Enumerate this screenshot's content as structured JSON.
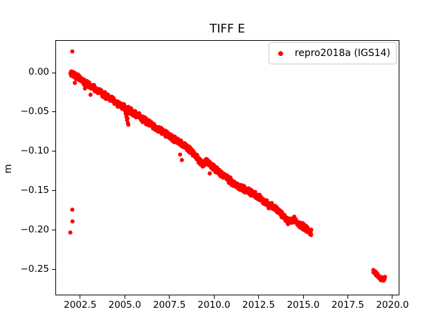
{
  "chart_data": {
    "type": "scatter",
    "title": "TIFF E",
    "xlabel": "",
    "ylabel": "m",
    "grid": false,
    "xlim": [
      2001.15,
      2020.35
    ],
    "ylim": [
      -0.282,
      0.0405
    ],
    "x_ticks": {
      "values": [
        2002.5,
        2005.0,
        2007.5,
        2010.0,
        2012.5,
        2015.0,
        2017.5,
        2020.0
      ],
      "labels": [
        "2002.5",
        "2005.0",
        "2007.5",
        "2010.0",
        "2012.5",
        "2015.0",
        "2017.5",
        "2020.0"
      ]
    },
    "y_ticks": {
      "values": [
        0.0,
        -0.05,
        -0.1,
        -0.15,
        -0.2,
        -0.25
      ],
      "labels": [
        "0.00",
        "−0.05",
        "−0.10",
        "−0.15",
        "−0.20",
        "−0.25"
      ]
    },
    "legend": {
      "position": "upper right",
      "entries": [
        {
          "label": "repro2018a (IGS14)",
          "color": "#ff0000",
          "marker": "dot"
        }
      ]
    },
    "series": [
      {
        "name": "repro2018a (IGS14)",
        "color": "#ff0000",
        "marker_radius_px": 3,
        "segments": [
          {
            "kind": "dense-trend",
            "points_per_year": 105,
            "noise": 0.0035,
            "anchors": [
              [
                2001.95,
                0.0
              ],
              [
                2002.35,
                -0.005
              ],
              [
                2002.75,
                -0.012
              ],
              [
                2003.25,
                -0.019
              ],
              [
                2003.75,
                -0.027
              ],
              [
                2004.25,
                -0.034
              ],
              [
                2004.75,
                -0.041
              ],
              [
                2005.25,
                -0.048
              ],
              [
                2005.75,
                -0.055
              ],
              [
                2006.25,
                -0.062
              ],
              [
                2006.75,
                -0.07
              ],
              [
                2007.25,
                -0.077
              ],
              [
                2007.75,
                -0.084
              ],
              [
                2008.25,
                -0.091
              ],
              [
                2008.75,
                -0.1
              ],
              [
                2009.1,
                -0.109
              ],
              [
                2009.35,
                -0.117
              ],
              [
                2009.6,
                -0.112
              ],
              [
                2010.0,
                -0.121
              ],
              [
                2010.5,
                -0.13
              ],
              [
                2011.0,
                -0.139
              ],
              [
                2011.5,
                -0.146
              ],
              [
                2012.0,
                -0.151
              ],
              [
                2012.5,
                -0.158
              ],
              [
                2013.0,
                -0.167
              ],
              [
                2013.5,
                -0.173
              ],
              [
                2013.9,
                -0.183
              ],
              [
                2014.2,
                -0.189
              ],
              [
                2014.5,
                -0.187
              ],
              [
                2014.9,
                -0.194
              ],
              [
                2015.2,
                -0.199
              ],
              [
                2015.45,
                -0.203
              ]
            ]
          },
          {
            "kind": "dense-cluster",
            "points_per_year": 160,
            "noise": 0.002,
            "anchors": [
              [
                2018.93,
                -0.2525
              ],
              [
                2019.05,
                -0.2545
              ],
              [
                2019.2,
                -0.258
              ],
              [
                2019.35,
                -0.2615
              ],
              [
                2019.5,
                -0.263
              ],
              [
                2019.58,
                -0.2605
              ]
            ]
          }
        ],
        "outlier_points": [
          [
            2002.06,
            0.027
          ],
          [
            2002.06,
            -0.174
          ],
          [
            2002.07,
            -0.189
          ],
          [
            2002.2,
            -0.013
          ],
          [
            2002.77,
            -0.02
          ],
          [
            2003.08,
            -0.028
          ],
          [
            2005.05,
            -0.052
          ],
          [
            2005.09,
            -0.056
          ],
          [
            2005.11,
            -0.053
          ],
          [
            2005.13,
            -0.06
          ],
          [
            2005.15,
            -0.058
          ],
          [
            2005.17,
            -0.064
          ],
          [
            2005.2,
            -0.066
          ],
          [
            2008.1,
            -0.104
          ],
          [
            2008.2,
            -0.111
          ],
          [
            2009.76,
            -0.128
          ]
        ]
      }
    ]
  }
}
